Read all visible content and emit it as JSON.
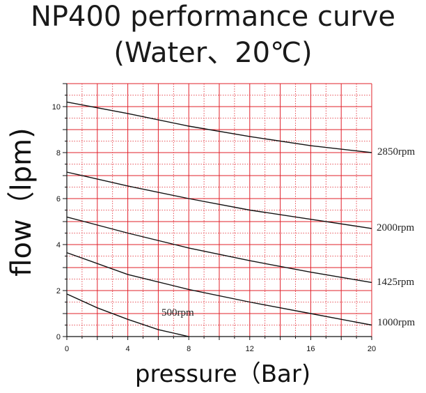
{
  "title_line1": "NP400 performance curve",
  "title_line2": "(Water、20℃)",
  "chart_data": {
    "type": "line",
    "xlabel": "pressure（Bar)",
    "ylabel": "flow（lpm)",
    "xlim": [
      0,
      20
    ],
    "ylim": [
      0,
      11
    ],
    "xticks": [
      0,
      4,
      8,
      12,
      16,
      20
    ],
    "yticks": [
      0,
      2,
      4,
      6,
      8,
      10
    ],
    "grid": true,
    "colors": {
      "grid_major": "#e0202a",
      "grid_minor": "#e0202a",
      "line": "#111111",
      "axis": "#111111"
    },
    "series": [
      {
        "name": "2850rpm",
        "x": [
          0,
          4,
          8,
          12,
          16,
          20
        ],
        "y": [
          10.2,
          9.7,
          9.15,
          8.7,
          8.3,
          8.0
        ]
      },
      {
        "name": "2000rpm",
        "x": [
          0,
          4,
          8,
          12,
          16,
          20
        ],
        "y": [
          7.15,
          6.55,
          6.0,
          5.5,
          5.1,
          4.7
        ]
      },
      {
        "name": "1425rpm",
        "x": [
          0,
          4,
          8,
          12,
          16,
          20
        ],
        "y": [
          5.2,
          4.5,
          3.85,
          3.3,
          2.8,
          2.35
        ]
      },
      {
        "name": "1000rpm",
        "x": [
          0,
          4,
          8,
          12,
          16,
          20
        ],
        "y": [
          3.65,
          2.7,
          2.05,
          1.5,
          1.0,
          0.5
        ]
      },
      {
        "name": "500rpm",
        "x": [
          0,
          2,
          4,
          6,
          8
        ],
        "y": [
          1.85,
          1.25,
          0.75,
          0.3,
          0.0
        ]
      }
    ]
  }
}
